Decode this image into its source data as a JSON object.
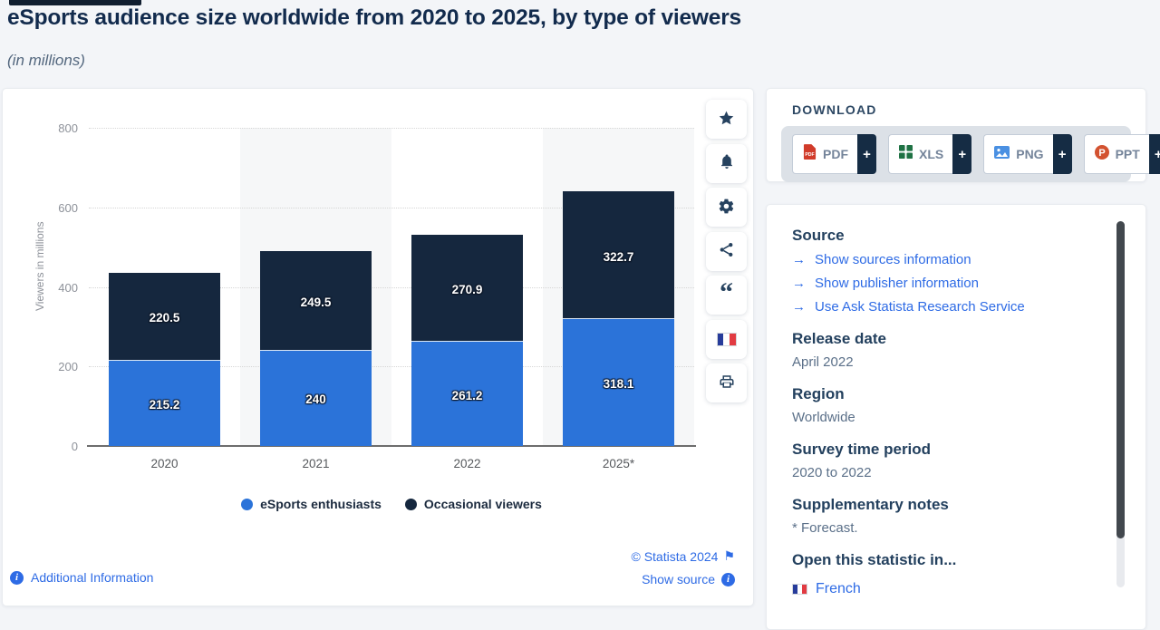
{
  "header": {
    "title": "eSports audience size worldwide from 2020 to 2025, by type of viewers",
    "subtitle": "(in millions)"
  },
  "chart_data": {
    "type": "bar",
    "stacked": true,
    "categories": [
      "2020",
      "2021",
      "2022",
      "2025*"
    ],
    "series": [
      {
        "name": "eSports enthusiasts",
        "color": "#2b73d9",
        "values": [
          215.2,
          240,
          261.2,
          318.1
        ]
      },
      {
        "name": "Occasional viewers",
        "color": "#15273e",
        "values": [
          220.5,
          249.5,
          270.9,
          322.7
        ]
      }
    ],
    "ylabel": "Viewers in millions",
    "ylim": [
      0,
      800
    ],
    "ytick_step": 200,
    "grid": true,
    "legend_position": "bottom"
  },
  "chart_footer": {
    "additional_info": "Additional Information",
    "copyright": "© Statista 2024",
    "show_source": "Show source"
  },
  "icons": {
    "info_glyph": "i",
    "flag_glyph": "⚑",
    "arrow_glyph": "→",
    "quote_glyph": "“"
  },
  "download": {
    "heading": "DOWNLOAD",
    "plus_label": "+",
    "formats": [
      {
        "label": "PDF"
      },
      {
        "label": "XLS"
      },
      {
        "label": "PNG"
      },
      {
        "label": "PPT"
      }
    ]
  },
  "details": {
    "source": {
      "heading": "Source",
      "links": [
        {
          "label": "Show sources information"
        },
        {
          "label": "Show publisher information"
        },
        {
          "label": "Use Ask Statista Research Service"
        }
      ]
    },
    "sections": [
      {
        "heading": "Release date",
        "value": "April 2022"
      },
      {
        "heading": "Region",
        "value": "Worldwide"
      },
      {
        "heading": "Survey time period",
        "value": "2020 to 2022"
      },
      {
        "heading": "Supplementary notes",
        "value": "* Forecast."
      }
    ],
    "open_in": {
      "heading": "Open this statistic in...",
      "language": "French"
    }
  }
}
